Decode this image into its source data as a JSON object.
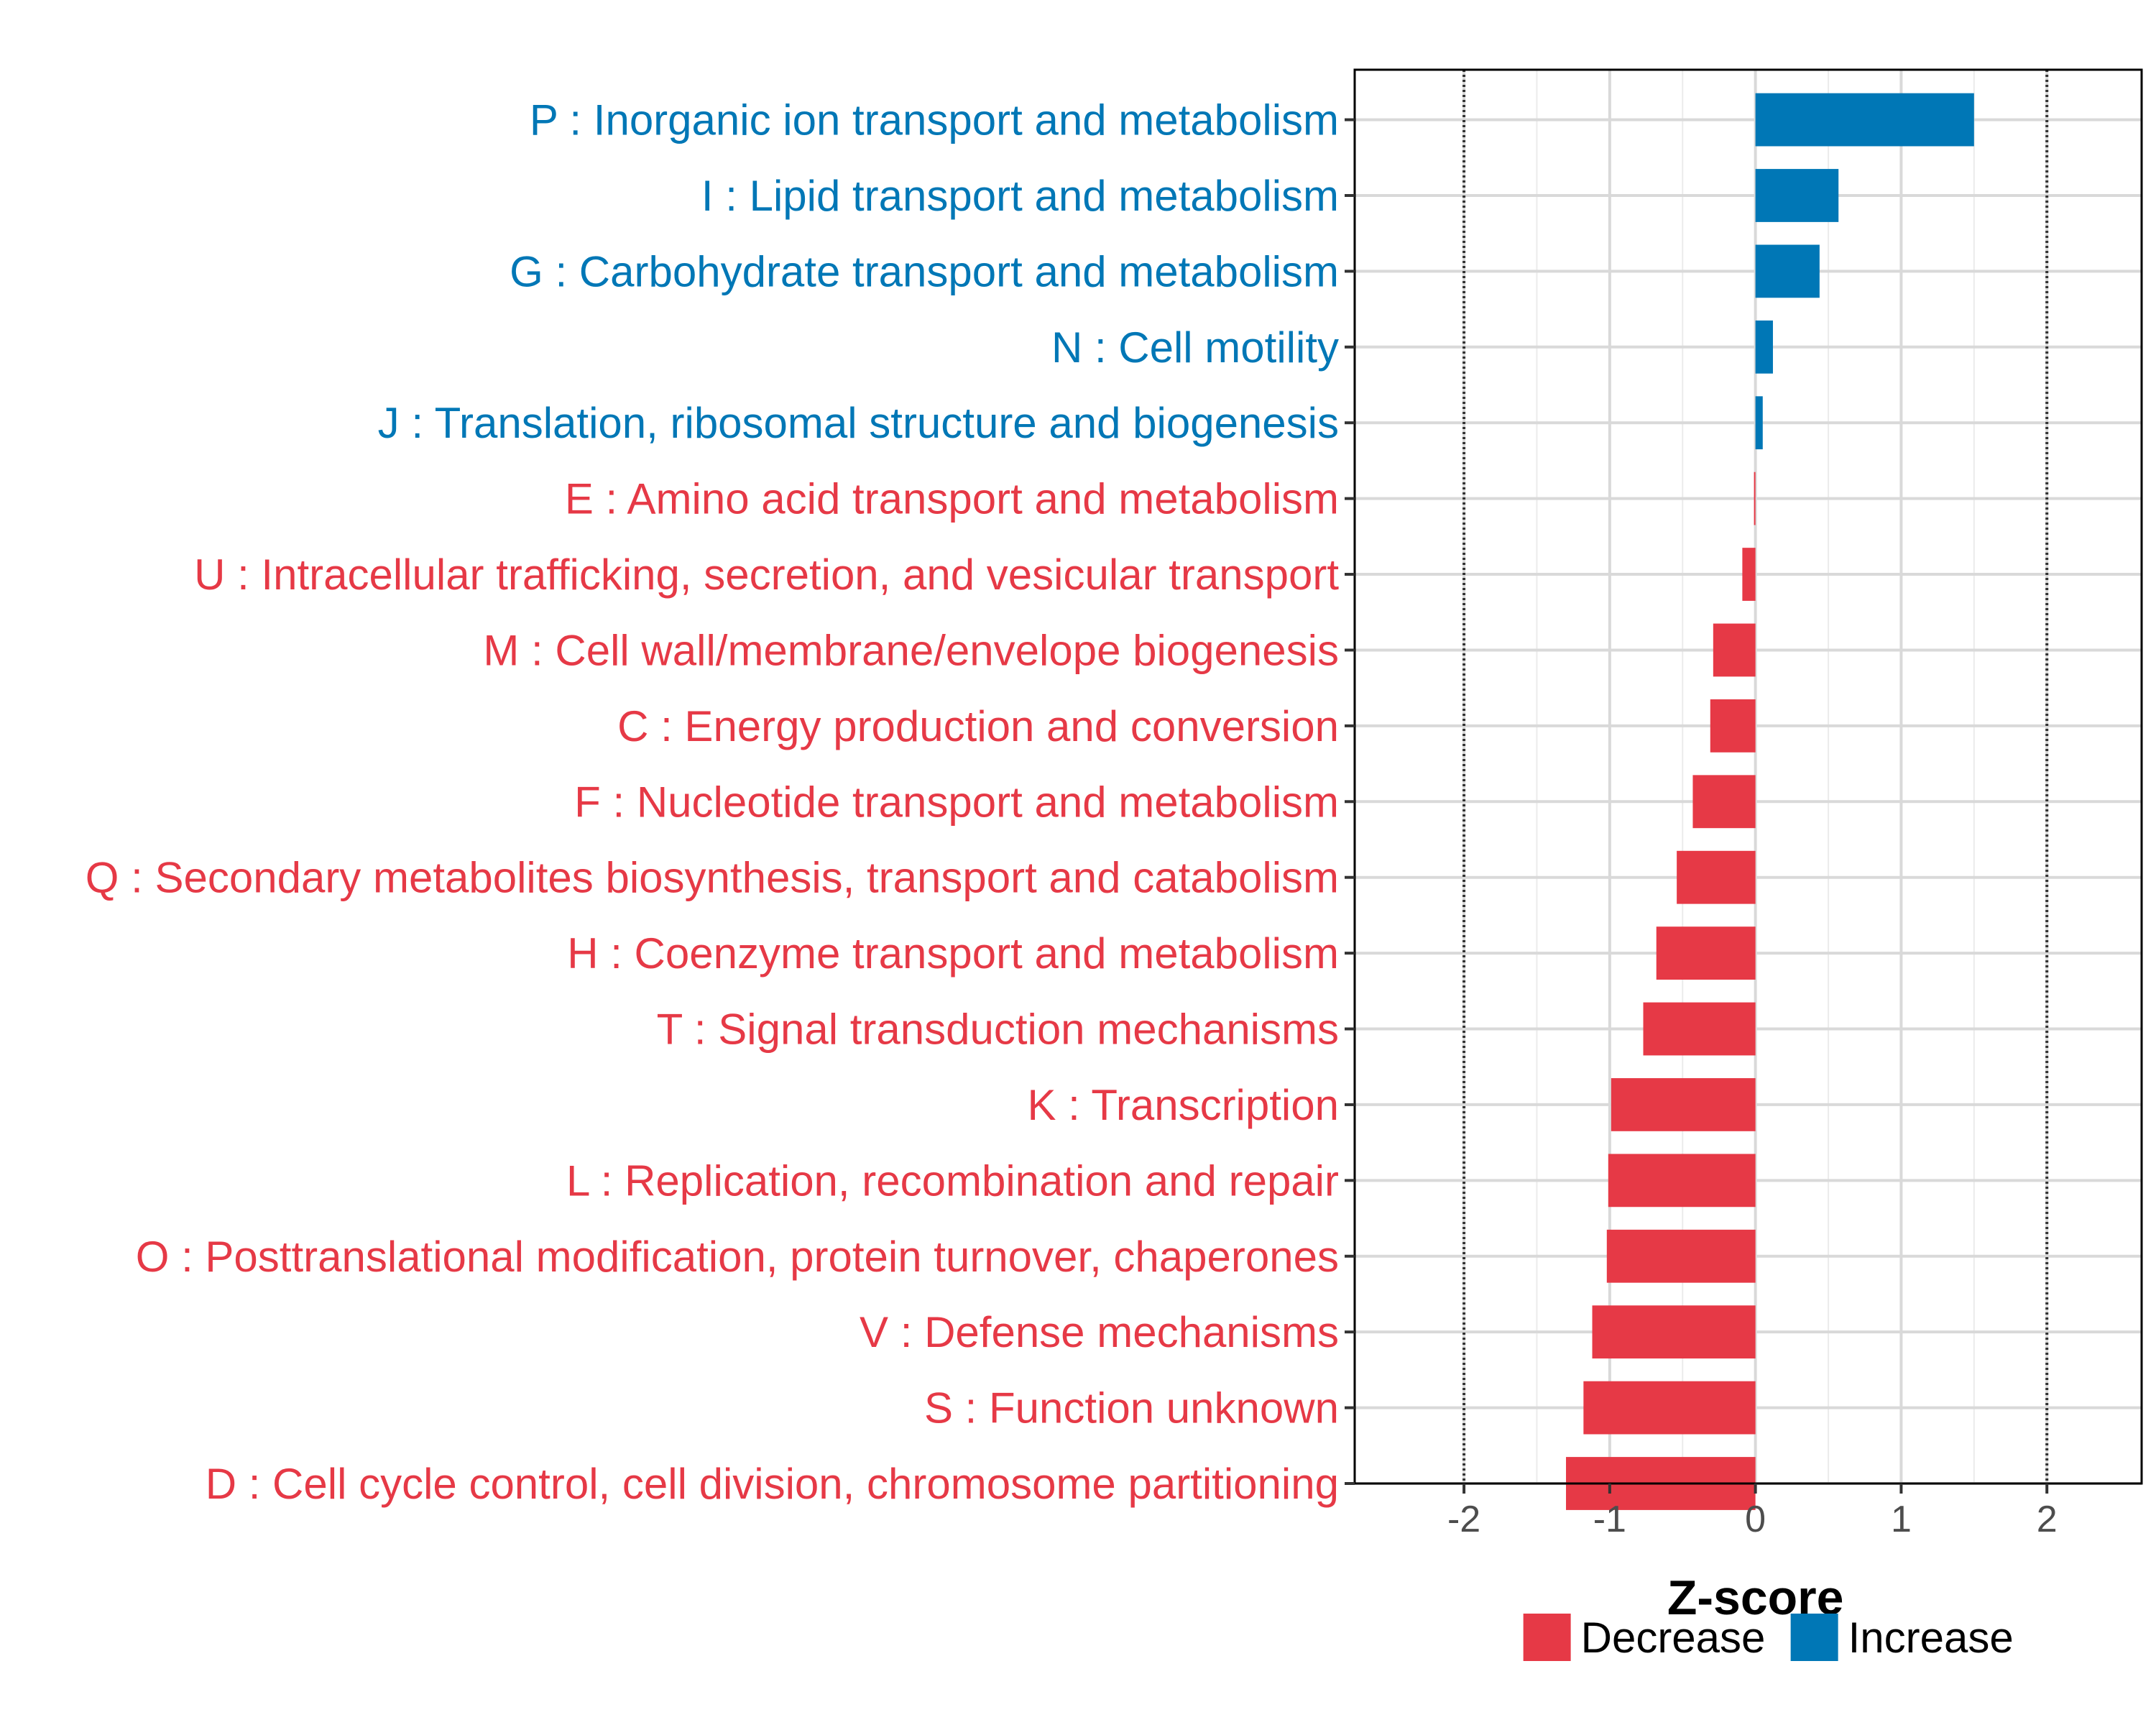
{
  "chart_data": {
    "type": "bar",
    "orientation": "horizontal",
    "xlabel": "Z-score",
    "ylabel": "",
    "xlim": [
      -2.75,
      2.65
    ],
    "x_ticks": [
      -2,
      -1,
      0,
      1,
      2
    ],
    "x_tick_labels": [
      "-2",
      "-1",
      "0",
      "1",
      "2"
    ],
    "reference_lines": [
      -2,
      2
    ],
    "grid": true,
    "legend_position": "bottom",
    "colors": {
      "Decrease": "#E63946",
      "Increase": "#0077B6"
    },
    "legend": [
      {
        "name": "Decrease",
        "color": "#E63946"
      },
      {
        "name": "Increase",
        "color": "#0077B6"
      }
    ],
    "categories": [
      "P : Inorganic ion transport and metabolism",
      "I : Lipid transport and metabolism",
      "G : Carbohydrate transport and metabolism",
      "N : Cell motility",
      "J : Translation, ribosomal structure and biogenesis",
      "E : Amino acid transport and metabolism",
      "U : Intracellular trafficking, secretion, and vesicular transport",
      "M : Cell wall/membrane/envelope biogenesis",
      "C : Energy production and conversion",
      "F : Nucleotide transport and metabolism",
      "Q : Secondary metabolites biosynthesis, transport and catabolism",
      "H : Coenzyme transport and metabolism",
      "T : Signal transduction mechanisms",
      "K : Transcription",
      "L : Replication, recombination and repair",
      "O : Posttranslational modification, protein turnover, chaperones",
      "V : Defense mechanisms",
      "S : Function unknown",
      "D : Cell cycle control, cell division, chromosome partitioning"
    ],
    "values": [
      1.5,
      0.57,
      0.44,
      0.12,
      0.05,
      -0.01,
      -0.09,
      -0.29,
      -0.31,
      -0.43,
      -0.54,
      -0.68,
      -0.77,
      -0.99,
      -1.01,
      -1.02,
      -1.12,
      -1.18,
      -1.3
    ],
    "direction": [
      "Increase",
      "Increase",
      "Increase",
      "Increase",
      "Increase",
      "Decrease",
      "Decrease",
      "Decrease",
      "Decrease",
      "Decrease",
      "Decrease",
      "Decrease",
      "Decrease",
      "Decrease",
      "Decrease",
      "Decrease",
      "Decrease",
      "Decrease",
      "Decrease"
    ]
  }
}
